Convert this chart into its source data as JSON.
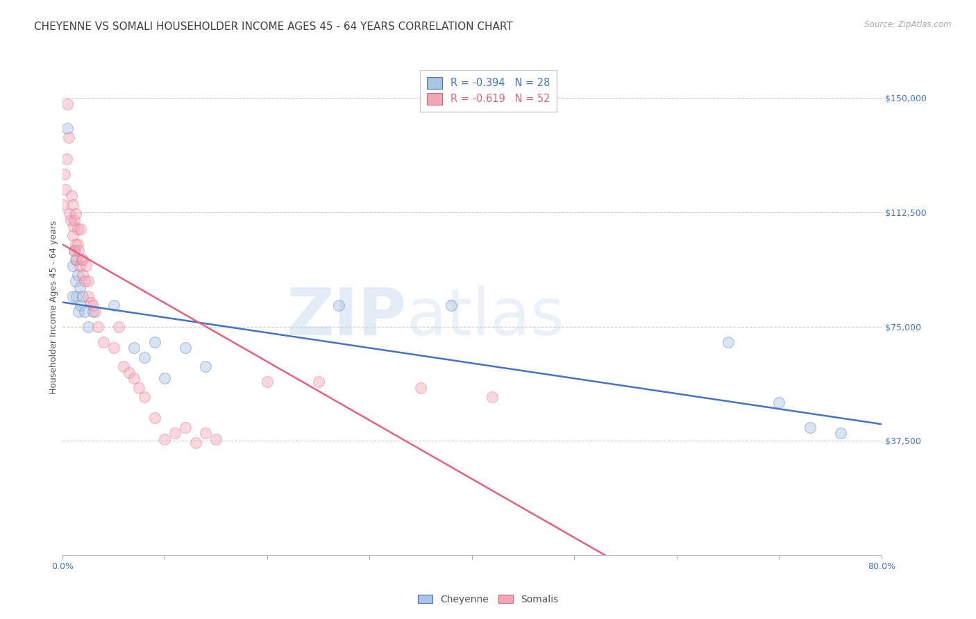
{
  "title": "CHEYENNE VS SOMALI HOUSEHOLDER INCOME AGES 45 - 64 YEARS CORRELATION CHART",
  "source": "Source: ZipAtlas.com",
  "ylabel": "Householder Income Ages 45 - 64 years",
  "xlim": [
    0,
    0.8
  ],
  "ylim": [
    0,
    162500
  ],
  "yticks": [
    0,
    37500,
    75000,
    112500,
    150000
  ],
  "ytick_labels": [
    "",
    "$37,500",
    "$75,000",
    "$112,500",
    "$150,000"
  ],
  "xticks": [
    0.0,
    0.1,
    0.2,
    0.3,
    0.4,
    0.5,
    0.6,
    0.7,
    0.8
  ],
  "cheyenne_color": "#aac4e2",
  "somali_color": "#f0a8b8",
  "line_cheyenne_color": "#4472c4",
  "line_somali_color": "#e8607a",
  "watermark_zip": "ZIP",
  "watermark_atlas": "atlas",
  "cheyenne_x": [
    0.005,
    0.01,
    0.01,
    0.012,
    0.013,
    0.013,
    0.014,
    0.015,
    0.016,
    0.017,
    0.018,
    0.02,
    0.022,
    0.025,
    0.03,
    0.05,
    0.07,
    0.08,
    0.09,
    0.1,
    0.12,
    0.14,
    0.27,
    0.38,
    0.65,
    0.7,
    0.73,
    0.76
  ],
  "cheyenne_y": [
    140000,
    95000,
    85000,
    100000,
    97000,
    90000,
    85000,
    92000,
    80000,
    88000,
    82000,
    85000,
    80000,
    75000,
    80000,
    82000,
    68000,
    65000,
    70000,
    58000,
    68000,
    62000,
    82000,
    82000,
    70000,
    50000,
    42000,
    40000
  ],
  "somali_x": [
    0.001,
    0.002,
    0.003,
    0.004,
    0.005,
    0.006,
    0.007,
    0.008,
    0.009,
    0.01,
    0.01,
    0.011,
    0.012,
    0.012,
    0.013,
    0.013,
    0.014,
    0.015,
    0.015,
    0.016,
    0.017,
    0.018,
    0.019,
    0.02,
    0.02,
    0.022,
    0.023,
    0.025,
    0.025,
    0.028,
    0.03,
    0.032,
    0.035,
    0.04,
    0.05,
    0.055,
    0.06,
    0.065,
    0.07,
    0.075,
    0.08,
    0.09,
    0.1,
    0.11,
    0.12,
    0.13,
    0.14,
    0.15,
    0.2,
    0.25,
    0.35,
    0.42
  ],
  "somali_y": [
    115000,
    125000,
    120000,
    130000,
    148000,
    137000,
    112000,
    110000,
    118000,
    115000,
    105000,
    108000,
    100000,
    110000,
    102000,
    112000,
    97000,
    107000,
    102000,
    100000,
    95000,
    107000,
    97000,
    97000,
    92000,
    90000,
    95000,
    90000,
    85000,
    83000,
    82000,
    80000,
    75000,
    70000,
    68000,
    75000,
    62000,
    60000,
    58000,
    55000,
    52000,
    45000,
    38000,
    40000,
    42000,
    37000,
    40000,
    38000,
    57000,
    57000,
    55000,
    52000
  ],
  "regression_cheyenne_x0": 0.0,
  "regression_cheyenne_y0": 83000,
  "regression_cheyenne_x1": 0.8,
  "regression_cheyenne_y1": 43000,
  "regression_somali_x0": 0.0,
  "regression_somali_y0": 102000,
  "regression_somali_x1": 0.53,
  "regression_somali_y1": 0,
  "background_color": "#ffffff",
  "grid_color": "#cccccc",
  "axis_color": "#4472c4",
  "title_color": "#404040",
  "title_fontsize": 11,
  "label_fontsize": 9,
  "tick_fontsize": 9,
  "marker_size": 130,
  "marker_alpha": 0.45,
  "line_width": 1.8,
  "legend_cheyenne_label": "R = -0.394   N = 28",
  "legend_somali_label": "R = -0.619   N = 52"
}
